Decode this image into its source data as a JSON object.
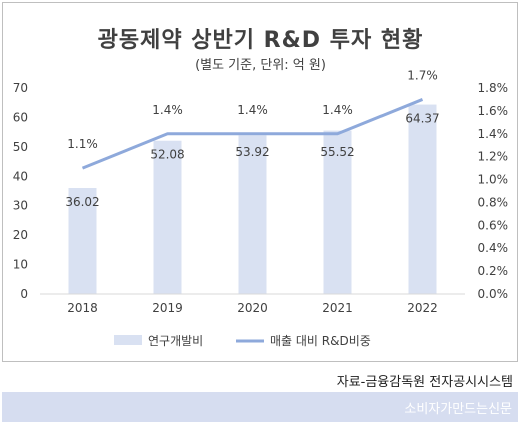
{
  "header": {
    "title": "광동제약 상반기 R&D 투자 현황",
    "subtitle": "(별도 기준, 단위: 억 원)"
  },
  "source": "자료-금융감독원 전자공시시스템",
  "footer": {
    "brand": "소비자가만드는신문"
  },
  "colors": {
    "bar": "#d9e1f2",
    "line": "#8ea9db",
    "text": "#404040",
    "axis": "#d9d9d9"
  },
  "chart_data": {
    "type": "bar",
    "categories": [
      "2018",
      "2019",
      "2020",
      "2021",
      "2022"
    ],
    "series": [
      {
        "name": "연구개발비",
        "type": "bar",
        "axis": "left",
        "values": [
          36.02,
          52.08,
          53.92,
          55.52,
          64.37
        ],
        "labels": [
          "36.02",
          "52.08",
          "53.92",
          "55.52",
          "64.37"
        ]
      },
      {
        "name": "매출 대비 R&D비중",
        "type": "line",
        "axis": "right",
        "values": [
          1.1,
          1.4,
          1.4,
          1.4,
          1.7
        ],
        "labels": [
          "1.1%",
          "1.4%",
          "1.4%",
          "1.4%",
          "1.7%"
        ]
      }
    ],
    "y_left": {
      "ylim": [
        0,
        70
      ],
      "ticks": [
        "0",
        "10",
        "20",
        "30",
        "40",
        "50",
        "60",
        "70"
      ]
    },
    "y_right": {
      "ylim": [
        0,
        1.8
      ],
      "ticks": [
        "0.0%",
        "0.2%",
        "0.4%",
        "0.6%",
        "0.8%",
        "1.0%",
        "1.2%",
        "1.4%",
        "1.6%",
        "1.8%"
      ]
    },
    "legend": {
      "position": "bottom"
    },
    "grid": false
  }
}
